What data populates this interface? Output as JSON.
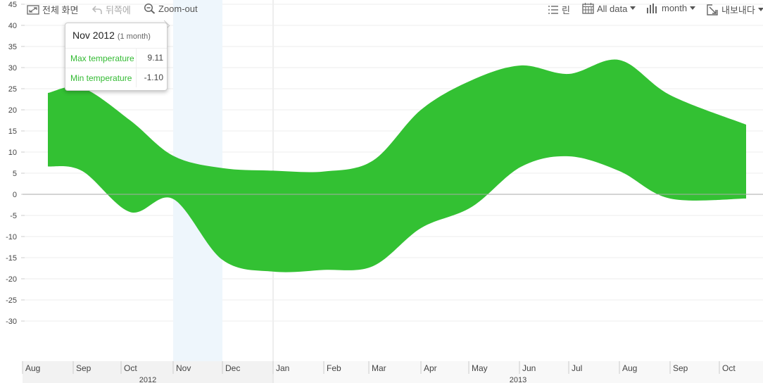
{
  "toolbar": {
    "fullscreen_label": "전체 화면",
    "back_label": "뒤쪽에",
    "zoomout_label": "Zoom-out",
    "list_label": "린",
    "alldata_label": "All data",
    "month_label": "month",
    "export_label": "내보내다"
  },
  "tooltip": {
    "title": "Nov 2012",
    "period": "(1 month)",
    "rows": [
      {
        "name": "Max temperature",
        "value": "9.11"
      },
      {
        "name": "Min temperature",
        "value": "-1.10"
      }
    ]
  },
  "colors": {
    "series": "#33c133",
    "highlight": "#eef6fc",
    "zero_line": "#aaaaaa",
    "grid": "#eeeeee",
    "axis_text": "#444444"
  },
  "chart_data": {
    "type": "area",
    "range_area": true,
    "categories": [
      "Aug",
      "Sep",
      "Oct",
      "Nov",
      "Dec",
      "Jan",
      "Feb",
      "Mar",
      "Apr",
      "May",
      "Jun",
      "Jul",
      "Aug",
      "Sep",
      "Oct"
    ],
    "years": [
      {
        "label": "2012",
        "from": 0,
        "to": 4
      },
      {
        "label": "2013",
        "from": 5,
        "to": 14
      }
    ],
    "series": [
      {
        "upper": [
          24,
          25.2,
          17.5,
          9.11,
          6.2,
          5.6,
          5.4,
          8,
          20,
          27,
          30.5,
          28.5,
          31.8,
          23.5,
          16.5
        ],
        "lower": [
          6.6,
          5.5,
          -4.2,
          -1.1,
          -15.5,
          -18.3,
          -17.9,
          -17,
          -8,
          -3,
          6.5,
          9,
          5.5,
          -1,
          -1
        ]
      }
    ],
    "ylim": [
      -35,
      45
    ],
    "yticks": [
      -30,
      -25,
      -20,
      -15,
      -10,
      -5,
      0,
      5,
      10,
      15,
      20,
      25,
      30,
      35,
      40,
      45
    ],
    "highlight_index": 3,
    "grid": true,
    "title": "",
    "xlabel": "",
    "ylabel": ""
  }
}
